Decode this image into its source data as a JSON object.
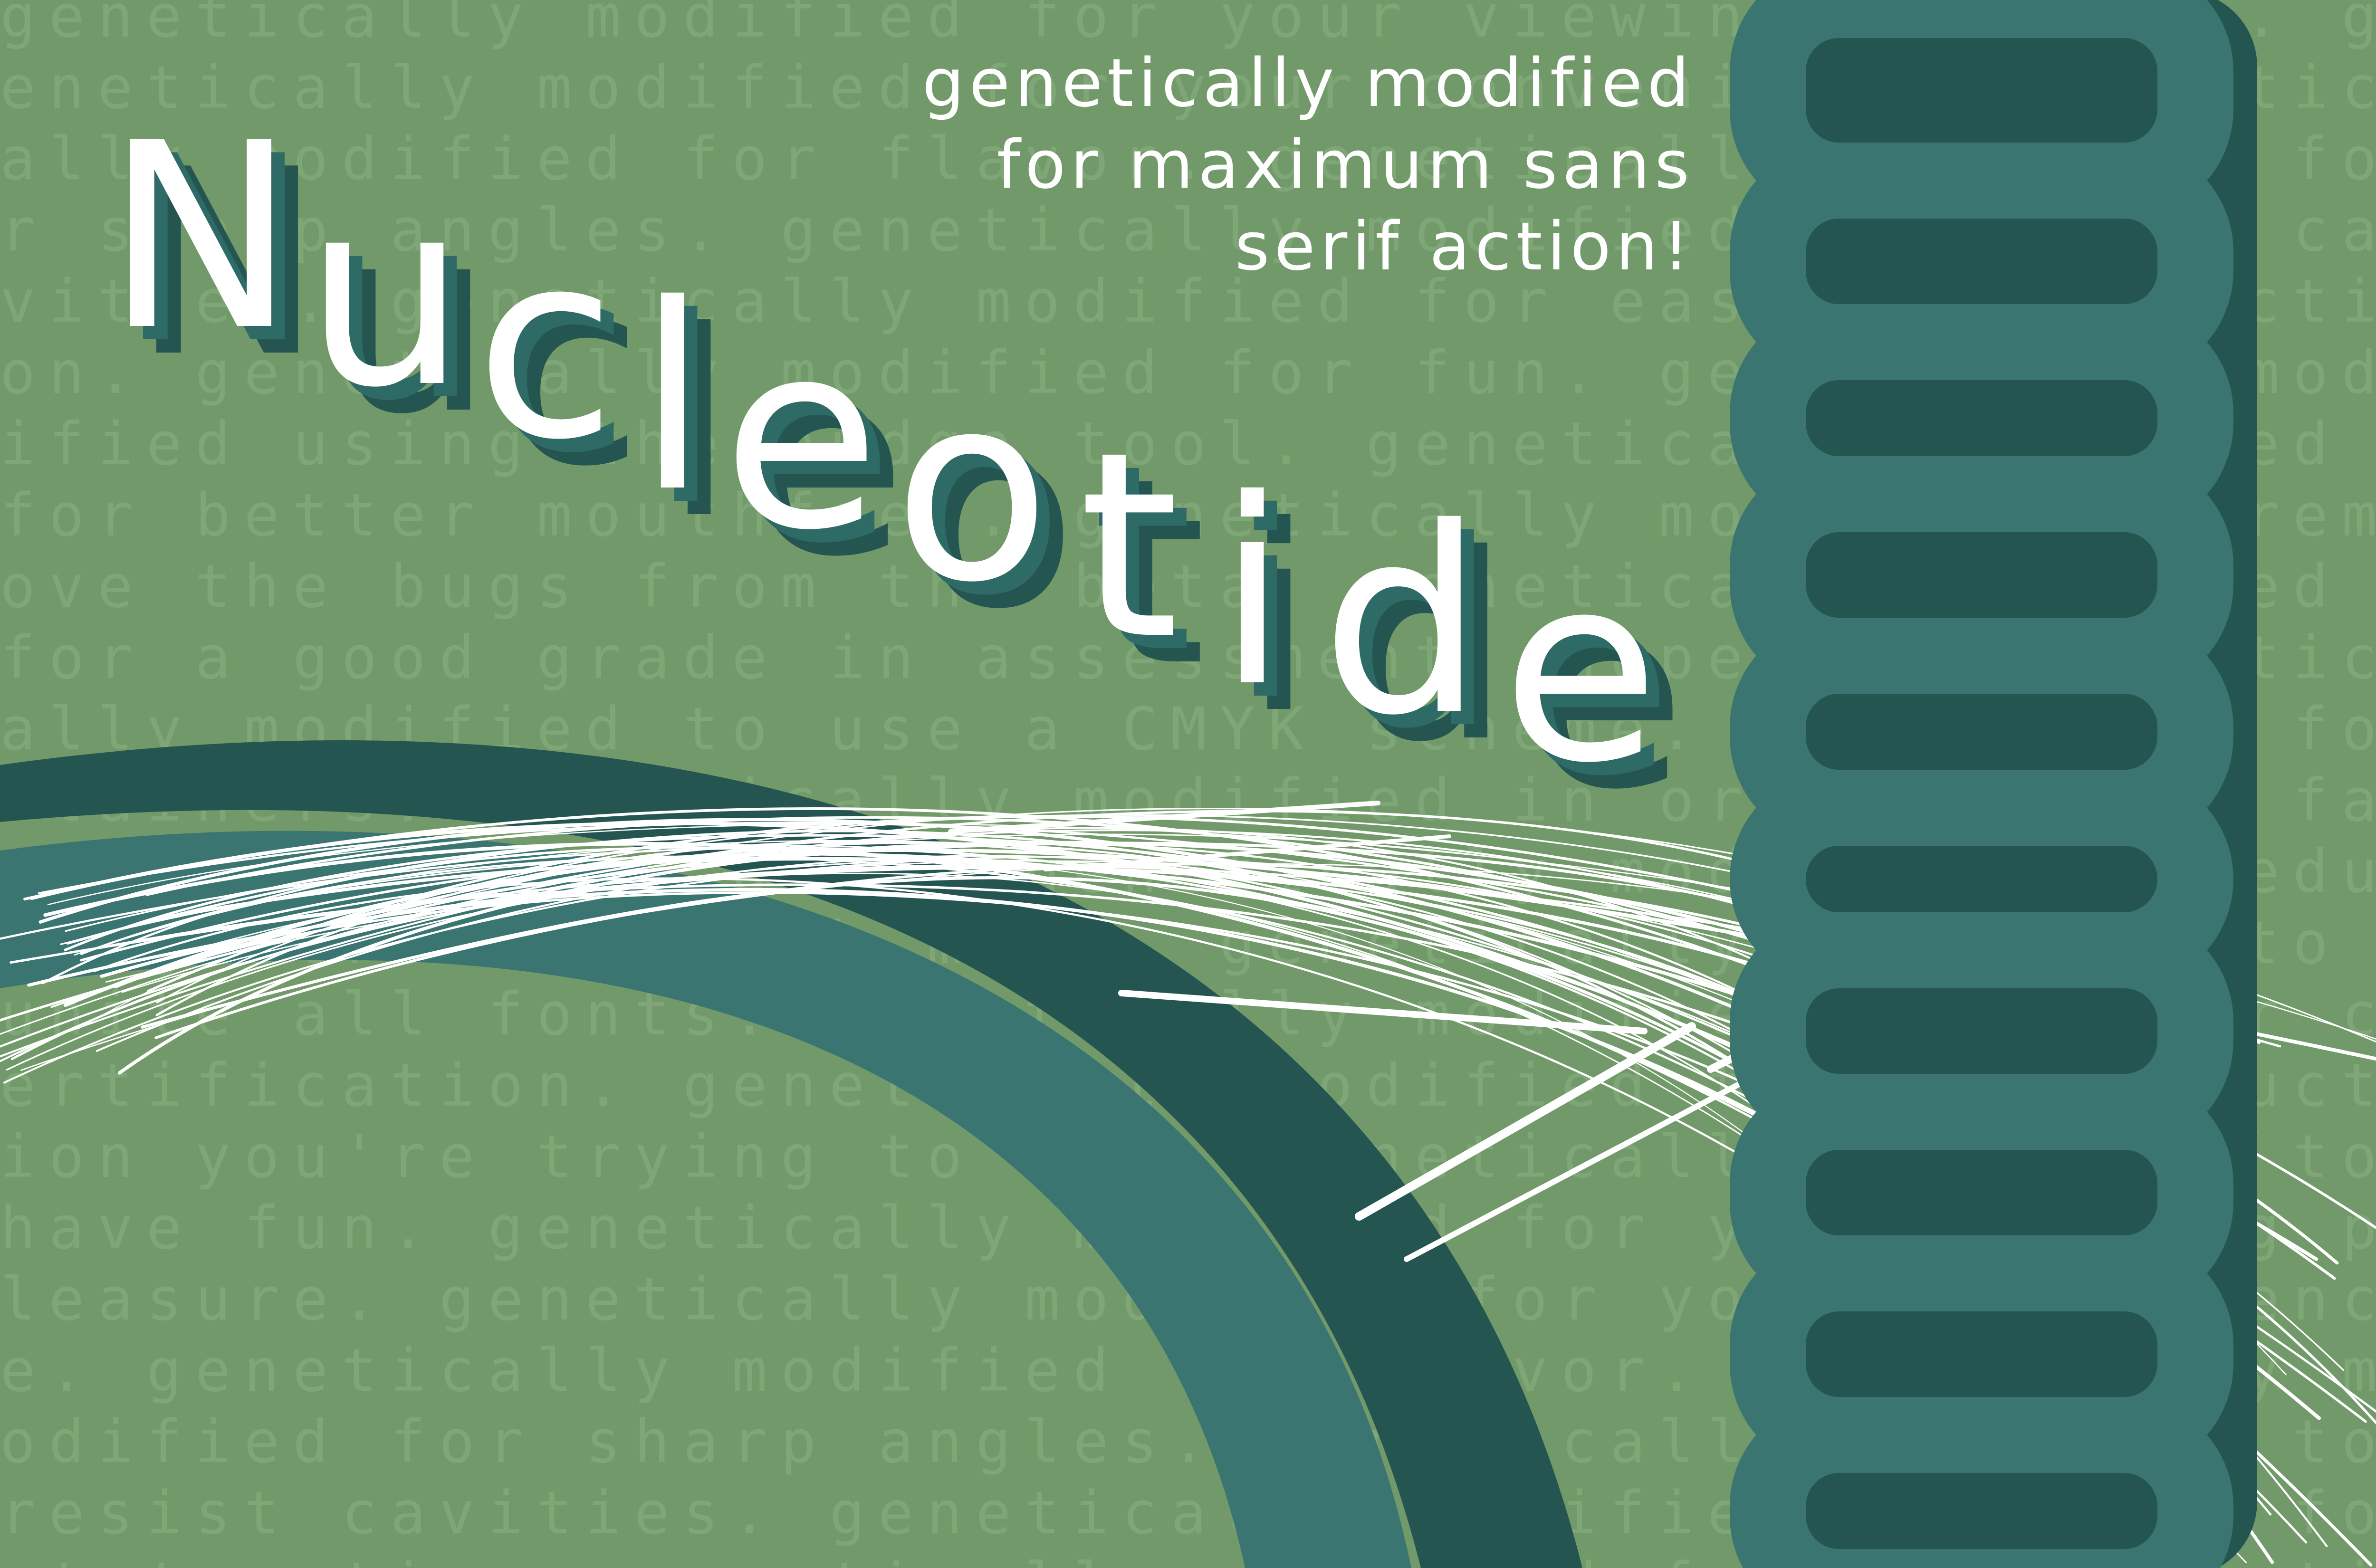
{
  "background_text": "genetically modified for your viewing pleasure. genetically modified for your convenience. genetically modified for flavor. genetically modified for sharp angles. genetically modified to resist cavities. genetically modified for easy fontstruction. genetically modified for fun. genetically modified using the nudge tool. genetically modified for better mouthfeel. genetically modified to remove the bugs from the beta. genetically modified for a good grade in assessment. hopefully genetically modified to use a CMYK scheme. usage with fontainers. genetically modified in order to run faster. to avoid doom. genetically modified to reduce gastronomy with meat. genetically modified to unite all fonts. genetically modified with your certification. genetically modified to put in auction you're trying to win. genetically modified to have fun.",
  "tagline": [
    "genetically modified",
    "for maximum sans",
    "serif action!"
  ],
  "title": {
    "letters": [
      "N",
      "u",
      "c",
      "l",
      "e",
      "o",
      "t",
      "i",
      "d",
      "e"
    ]
  },
  "colors": {
    "background": "#729969",
    "background_text": "#7fa676",
    "teal_light": "#3a7571",
    "teal_dark": "#245550",
    "white": "#ffffff"
  }
}
